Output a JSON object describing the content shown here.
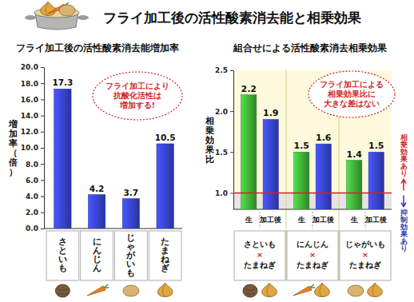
{
  "title": "フライ加工後の活性酸素消去能と相乗効果",
  "chart_data": [
    {
      "type": "bar",
      "title": "フライ加工後の活性酸素消去能増加率",
      "y_label": "増加率（倍）",
      "categories": [
        "さといも",
        "にんじん",
        "じゃがいも",
        "たまねぎ"
      ],
      "values": [
        17.3,
        4.2,
        3.7,
        10.5
      ],
      "color": "#3440c0",
      "data_labels": true,
      "ylim": [
        0,
        20
      ],
      "yticks": [
        {
          "value": 0,
          "label": "0.0"
        },
        {
          "value": 2,
          "label": "2.0"
        },
        {
          "value": 4,
          "label": "4.0"
        },
        {
          "value": 6,
          "label": "6.0"
        },
        {
          "value": 8,
          "label": "8.0"
        },
        {
          "value": 10,
          "label": "10.0"
        },
        {
          "value": 12,
          "label": "12.0"
        },
        {
          "value": 14,
          "label": "14.0"
        },
        {
          "value": 16,
          "label": "16.0"
        },
        {
          "value": 18,
          "label": "18.0"
        },
        {
          "value": 20,
          "label": "20.0"
        }
      ],
      "annotation": "フライ加工により\n抗酸化活性は\n増加する!"
    },
    {
      "type": "bar",
      "title": "組合せによる活性酸素消去相乗効果",
      "y_label": "相乗効果比",
      "categories": [
        "さといも\n×\nたまねぎ",
        "にんじん\n×\nたまねぎ",
        "じゃがいも\n×\nたまねぎ"
      ],
      "series": [
        {
          "name": "生",
          "color": "#3aa535",
          "values": [
            2.2,
            1.5,
            1.4
          ]
        },
        {
          "name": "加工後",
          "color": "#3440c0",
          "values": [
            1.9,
            1.6,
            1.5
          ]
        }
      ],
      "data_labels": true,
      "ylim": [
        0.8,
        2.5
      ],
      "yticks": [
        {
          "value": 1,
          "label": "1.0"
        },
        {
          "value": 1.5,
          "label": "1.5"
        },
        {
          "value": 2,
          "label": "2.0"
        },
        {
          "value": 2.5,
          "label": "2.5"
        }
      ],
      "reference_line": 1,
      "reference_labels": {
        "above": "相乗効果あり",
        "below": "抑制効果あり"
      },
      "annotation": "フライ加工による\n相乗効果比に\n大きな差はない"
    }
  ]
}
